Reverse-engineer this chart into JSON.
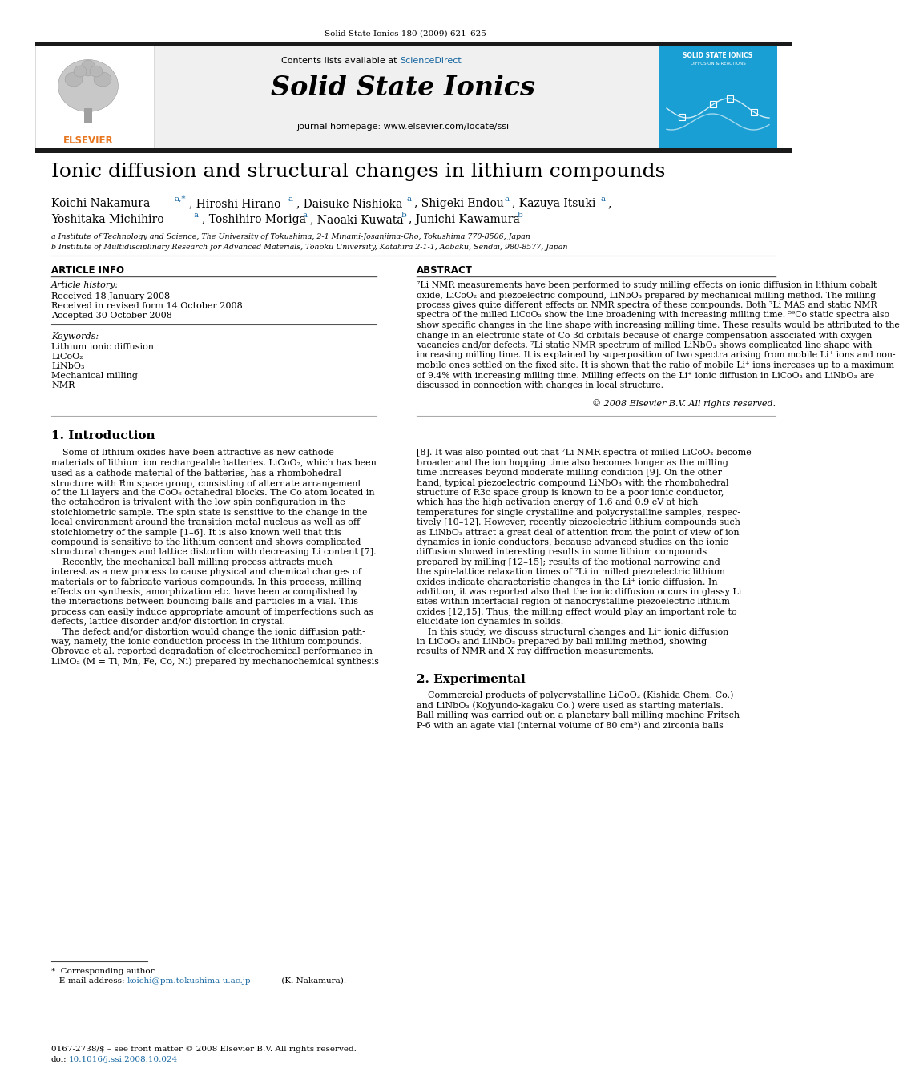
{
  "journal_header": "Solid State Ionics 180 (2009) 621–625",
  "journal_name": "Solid State Ionics",
  "journal_homepage": "journal homepage: www.elsevier.com/locate/ssi",
  "contents_text": "Contents lists available at ScienceDirect",
  "title": "Ionic diffusion and structural changes in lithium compounds",
  "affil_a": "a Institute of Technology and Science, The University of Tokushima, 2-1 Minami-Josanjima-Cho, Tokushima 770-8506, Japan",
  "affil_b": "b Institute of Multidisciplinary Research for Advanced Materials, Tohoku University, Katahira 2-1-1, Aobaku, Sendai, 980-8577, Japan",
  "article_info_title": "ARTICLE INFO",
  "article_history": "Article history:",
  "received": "Received 18 January 2008",
  "revised": "Received in revised form 14 October 2008",
  "accepted": "Accepted 30 October 2008",
  "keywords_title": "Keywords:",
  "keywords": [
    "Lithium ionic diffusion",
    "LiCoO₂",
    "LiNbO₃",
    "Mechanical milling",
    "NMR"
  ],
  "abstract_title": "ABSTRACT",
  "abstract_lines": [
    "⁷Li NMR measurements have been performed to study milling effects on ionic diffusion in lithium cobalt",
    "oxide, LiCoO₂ and piezoelectric compound, LiNbO₃ prepared by mechanical milling method. The milling",
    "process gives quite different effects on NMR spectra of these compounds. Both ⁷Li MAS and static NMR",
    "spectra of the milled LiCoO₂ show the line broadening with increasing milling time. ⁵⁹Co static spectra also",
    "show specific changes in the line shape with increasing milling time. These results would be attributed to the",
    "change in an electronic state of Co 3d orbitals because of charge compensation associated with oxygen",
    "vacancies and/or defects. ⁷Li static NMR spectrum of milled LiNbO₃ shows complicated line shape with",
    "increasing milling time. It is explained by superposition of two spectra arising from mobile Li⁺ ions and non-",
    "mobile ones settled on the fixed site. It is shown that the ratio of mobile Li⁺ ions increases up to a maximum",
    "of 9.4% with increasing milling time. Milling effects on the Li⁺ ionic diffusion in LiCoO₂ and LiNbO₃ are",
    "discussed in connection with changes in local structure."
  ],
  "copyright": "© 2008 Elsevier B.V. All rights reserved.",
  "section1_title": "1. Introduction",
  "col_left_lines": [
    "    Some of lithium oxides have been attractive as new cathode",
    "materials of lithium ion rechargeable batteries. LiCoO₂, which has been",
    "used as a cathode material of the batteries, has a rhombohedral",
    "structure with R̽m space group, consisting of alternate arrangement",
    "of the Li layers and the CoO₆ octahedral blocks. The Co atom located in",
    "the octahedron is trivalent with the low-spin configuration in the",
    "stoichiometric sample. The spin state is sensitive to the change in the",
    "local environment around the transition-metal nucleus as well as off-",
    "stoichiometry of the sample [1–6]. It is also known well that this",
    "compound is sensitive to the lithium content and shows complicated",
    "structural changes and lattice distortion with decreasing Li content [7].",
    "    Recently, the mechanical ball milling process attracts much",
    "interest as a new process to cause physical and chemical changes of",
    "materials or to fabricate various compounds. In this process, milling",
    "effects on synthesis, amorphization etc. have been accomplished by",
    "the interactions between bouncing balls and particles in a vial. This",
    "process can easily induce appropriate amount of imperfections such as",
    "defects, lattice disorder and/or distortion in crystal.",
    "    The defect and/or distortion would change the ionic diffusion path-",
    "way, namely, the ionic conduction process in the lithium compounds.",
    "Obrovac et al. reported degradation of electrochemical performance in",
    "LiMO₂ (M = Ti, Mn, Fe, Co, Ni) prepared by mechanochemical synthesis"
  ],
  "col_right_lines": [
    "[8]. It was also pointed out that ⁷Li NMR spectra of milled LiCoO₂ become",
    "broader and the ion hopping time also becomes longer as the milling",
    "time increases beyond moderate milling condition [9]. On the other",
    "hand, typical piezoelectric compound LiNbO₃ with the rhombohedral",
    "structure of R3c space group is known to be a poor ionic conductor,",
    "which has the high activation energy of 1.6 and 0.9 eV at high",
    "temperatures for single crystalline and polycrystalline samples, respec-",
    "tively [10–12]. However, recently piezoelectric lithium compounds such",
    "as LiNbO₃ attract a great deal of attention from the point of view of ion",
    "dynamics in ionic conductors, because advanced studies on the ionic",
    "diffusion showed interesting results in some lithium compounds",
    "prepared by milling [12–15]; results of the motional narrowing and",
    "the spin-lattice relaxation times of ⁷Li in milled piezoelectric lithium",
    "oxides indicate characteristic changes in the Li⁺ ionic diffusion. In",
    "addition, it was reported also that the ionic diffusion occurs in glassy Li",
    "sites within interfacial region of nanocrystalline piezoelectric lithium",
    "oxides [12,15]. Thus, the milling effect would play an important role to",
    "elucidate ion dynamics in solids.",
    "    In this study, we discuss structural changes and Li⁺ ionic diffusion",
    "in LiCoO₂ and LiNbO₃ prepared by ball milling method, showing",
    "results of NMR and X-ray diffraction measurements."
  ],
  "section2_title": "2. Experimental",
  "section2_lines": [
    "    Commercial products of polycrystalline LiCoO₂ (Kishida Chem. Co.)",
    "and LiNbO₃ (Kojyundo-kagaku Co.) were used as starting materials.",
    "Ball milling was carried out on a planetary ball milling machine Fritsch",
    "P-6 with an agate vial (internal volume of 80 cm³) and zirconia balls"
  ],
  "footnote_star": "*  Corresponding author.",
  "footnote_email": "   E-mail address: koichi@pm.tokushima-u.ac.jp (K. Nakamura).",
  "footer_left": "0167-2738/$ – see front matter © 2008 Elsevier B.V. All rights reserved.",
  "footer_doi": "doi: 10.1016/j.ssi.2008.10.024",
  "bg_gray": "#f0f0f0",
  "elsevier_orange": "#e87722",
  "sciencedirect_blue": "#1565a0",
  "journal_box_bg": "#1a9fd4",
  "dark_bar": "#1a1a1a",
  "link_blue": "#1565a0",
  "ref_blue": "#1565a0"
}
